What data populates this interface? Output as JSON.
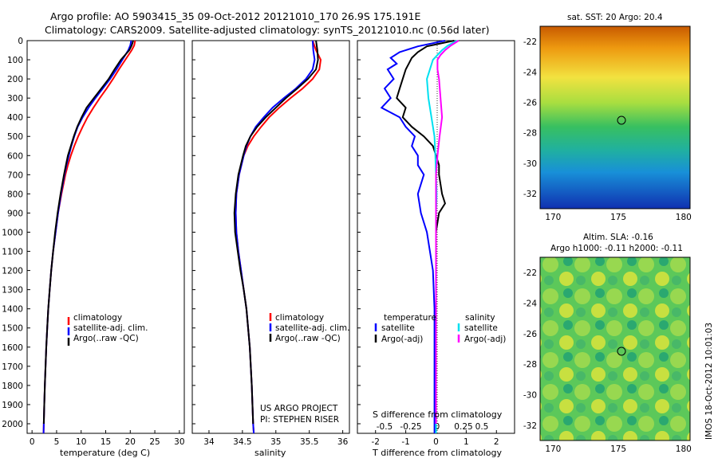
{
  "header": {
    "line1": "Argo profile: AO 5903415_35 09-Oct-2012 20121010_170 26.9S 175.191E",
    "line2": "Climatology: CARS2009. Satellite-adjusted climatology: synTS_20121010.nc (0.56d later)"
  },
  "project": {
    "line1": "US ARGO PROJECT",
    "line2": "PI: STEPHEN RISER"
  },
  "timestamp": "IMOS 18-Oct-2012 10:01:03",
  "colors": {
    "climatology": "#ff0000",
    "satellite": "#0000ff",
    "argo": "#000000",
    "cyan": "#00e0f0",
    "magenta": "#ff00ff"
  },
  "chart_data": [
    {
      "type": "line",
      "xlabel": "temperature (deg C)",
      "ylabel": "",
      "xlim": [
        -1,
        31
      ],
      "ylim": [
        2050,
        0
      ],
      "xticks": [
        0,
        5,
        10,
        15,
        20,
        25,
        30
      ],
      "yticks": [
        0,
        100,
        200,
        300,
        400,
        500,
        600,
        700,
        800,
        900,
        1000,
        1100,
        1200,
        1300,
        1400,
        1500,
        1600,
        1700,
        1800,
        1900,
        2000
      ],
      "legend": [
        "climatology",
        "satellite-adj. clim.",
        "Argo(..raw -QC)"
      ],
      "series": [
        {
          "name": "climatology",
          "depth": [
            0,
            25,
            50,
            100,
            150,
            200,
            250,
            300,
            350,
            400,
            450,
            500,
            550,
            600,
            650,
            700,
            800,
            900,
            1000,
            1100,
            1200,
            1300,
            1400,
            1500,
            1600,
            1700,
            1800,
            1900,
            2000,
            2050
          ],
          "values": [
            21,
            20.8,
            20.3,
            19,
            17.7,
            16.5,
            15.2,
            13.8,
            12.5,
            11.3,
            10.3,
            9.4,
            8.6,
            7.9,
            7.3,
            6.8,
            6.0,
            5.3,
            4.8,
            4.3,
            3.9,
            3.6,
            3.3,
            3.1,
            2.9,
            2.75,
            2.6,
            2.5,
            2.4,
            2.35
          ]
        },
        {
          "name": "satellite-adj. clim.",
          "depth": [
            0,
            25,
            50,
            100,
            150,
            200,
            250,
            300,
            350,
            400,
            450,
            500,
            550,
            600,
            650,
            700,
            800,
            900,
            1000,
            1100,
            1200,
            1300,
            1400,
            1500,
            1600,
            1700,
            1800,
            1900,
            2000,
            2050
          ],
          "values": [
            20.2,
            20,
            19.6,
            18.4,
            17.2,
            15.9,
            14.4,
            12.9,
            11.5,
            10.3,
            9.3,
            8.6,
            8.0,
            7.5,
            7.0,
            6.6,
            5.9,
            5.3,
            4.8,
            4.3,
            3.9,
            3.6,
            3.3,
            3.1,
            2.9,
            2.75,
            2.6,
            2.5,
            2.4,
            2.35
          ]
        },
        {
          "name": "Argo(..raw -QC)",
          "depth": [
            0,
            25,
            50,
            100,
            150,
            200,
            250,
            300,
            350,
            400,
            450,
            500,
            550,
            600,
            650,
            700,
            800,
            900,
            1000,
            1100,
            1200,
            1300,
            1400,
            1500,
            1600,
            1700,
            1800,
            1900,
            2000
          ],
          "values": [
            20.6,
            20.3,
            19.8,
            18.1,
            16.8,
            15.6,
            14.1,
            12.6,
            11.1,
            10.1,
            9.2,
            8.5,
            7.9,
            7.3,
            6.9,
            6.5,
            5.8,
            5.2,
            4.7,
            4.3,
            3.9,
            3.6,
            3.3,
            3.1,
            2.9,
            2.75,
            2.6,
            2.5,
            2.4
          ]
        }
      ]
    },
    {
      "type": "line",
      "xlabel": "salinity",
      "ylabel": "",
      "xlim": [
        33.75,
        36.1
      ],
      "ylim": [
        2050,
        0
      ],
      "xticks": [
        34,
        34.5,
        35,
        35.5,
        36
      ],
      "legend": [
        "climatology",
        "satellite-adj. clim.",
        "Argo(..raw -QC)"
      ],
      "series": [
        {
          "name": "climatology",
          "depth": [
            0,
            50,
            100,
            150,
            200,
            250,
            300,
            350,
            400,
            450,
            500,
            550,
            600,
            700,
            800,
            900,
            1000,
            1100,
            1200,
            1300,
            1400,
            1600,
            1800,
            2000,
            2050
          ],
          "values": [
            35.55,
            35.6,
            35.67,
            35.65,
            35.55,
            35.4,
            35.22,
            35.05,
            34.9,
            34.78,
            34.67,
            34.58,
            34.52,
            34.45,
            34.41,
            34.4,
            34.41,
            34.44,
            34.48,
            34.52,
            34.56,
            34.61,
            34.64,
            34.66,
            34.67
          ]
        },
        {
          "name": "satellite-adj. clim.",
          "depth": [
            0,
            50,
            100,
            150,
            200,
            250,
            300,
            350,
            400,
            450,
            500,
            550,
            600,
            700,
            800,
            900,
            1000,
            1100,
            1200,
            1300,
            1400,
            1600,
            1800,
            2000,
            2050
          ],
          "values": [
            35.55,
            35.56,
            35.58,
            35.55,
            35.45,
            35.3,
            35.12,
            34.95,
            34.82,
            34.7,
            34.62,
            34.56,
            34.52,
            34.45,
            34.41,
            34.4,
            34.41,
            34.44,
            34.48,
            34.52,
            34.56,
            34.61,
            34.64,
            34.66,
            34.67
          ]
        },
        {
          "name": "Argo(..raw -QC)",
          "depth": [
            0,
            50,
            100,
            150,
            200,
            250,
            300,
            350,
            400,
            450,
            500,
            550,
            600,
            700,
            800,
            900,
            1000,
            1100,
            1200,
            1300,
            1400,
            1600,
            1800,
            2000
          ],
          "values": [
            35.6,
            35.62,
            35.63,
            35.6,
            35.48,
            35.32,
            35.15,
            35.0,
            34.85,
            34.72,
            34.62,
            34.55,
            34.51,
            34.44,
            34.4,
            34.38,
            34.39,
            34.43,
            34.47,
            34.52,
            34.56,
            34.61,
            34.64,
            34.66
          ]
        }
      ]
    },
    {
      "type": "line",
      "xlabel": "T difference from climatology",
      "xlabel2": "S difference from climatology",
      "ylabel": "",
      "xlim": [
        -2.6,
        2.6
      ],
      "ylim": [
        2050,
        0
      ],
      "xticks": [
        -2,
        -1,
        0,
        1,
        2
      ],
      "xticks_s": [
        "-0.5",
        "-0.25",
        "0",
        "0.25",
        "0.5"
      ],
      "legend_left_title": "temperature",
      "legend_right_title": "salinity",
      "legend": [
        "satellite",
        "Argo(-adj)",
        "satellite",
        "Argo(-adj)"
      ],
      "series": [
        {
          "name": "T satellite",
          "depth": [
            0,
            30,
            60,
            90,
            120,
            150,
            200,
            250,
            300,
            350,
            400,
            450,
            500,
            550,
            600,
            650,
            700,
            800,
            900,
            1000,
            1100,
            1200,
            1400,
            1600,
            1800,
            2000,
            2050
          ],
          "values": [
            0.3,
            -0.6,
            -1.2,
            -1.5,
            -1.3,
            -1.6,
            -1.4,
            -1.7,
            -1.5,
            -1.8,
            -1.2,
            -1.0,
            -0.7,
            -0.8,
            -0.6,
            -0.6,
            -0.4,
            -0.6,
            -0.5,
            -0.3,
            -0.2,
            -0.1,
            -0.05,
            -0.05,
            -0.05,
            -0.05,
            -0.05
          ]
        },
        {
          "name": "T Argo(-adj)",
          "depth": [
            0,
            30,
            60,
            90,
            120,
            150,
            200,
            250,
            300,
            350,
            400,
            450,
            500,
            550,
            600,
            650,
            700,
            800,
            850,
            900,
            1000,
            1100,
            1200,
            1400,
            1600,
            1800,
            2000
          ],
          "values": [
            0.6,
            -0.3,
            -0.6,
            -0.8,
            -0.9,
            -1.0,
            -1.1,
            -1.2,
            -1.3,
            -1.0,
            -1.1,
            -0.8,
            -0.4,
            -0.1,
            0.0,
            0.1,
            0.1,
            0.2,
            0.3,
            0.1,
            0.0,
            0.0,
            0.0,
            0.0,
            0.0,
            0.0,
            0.0
          ]
        },
        {
          "name": "S satellite",
          "depth": [
            0,
            25,
            50,
            75,
            100,
            150,
            200,
            300,
            400,
            500,
            600,
            700,
            800,
            900,
            1000,
            1200,
            1400,
            1600,
            1800,
            2000,
            2050
          ],
          "values": [
            0.7,
            0.4,
            0.2,
            0.05,
            -0.1,
            -0.2,
            -0.3,
            -0.25,
            -0.15,
            -0.05,
            -0.02,
            0.0,
            0.02,
            0.0,
            0.0,
            0.0,
            0.0,
            0.0,
            0.0,
            0.0,
            0.0
          ]
        },
        {
          "name": "S Argo(-adj)",
          "depth": [
            0,
            25,
            50,
            75,
            100,
            150,
            200,
            300,
            400,
            500,
            600,
            700,
            800,
            900,
            1000,
            1200,
            1400,
            1600,
            1800,
            2000
          ],
          "values": [
            0.75,
            0.5,
            0.3,
            0.15,
            0.05,
            0.05,
            0.1,
            0.15,
            0.2,
            0.12,
            0.05,
            0.0,
            0.0,
            0.0,
            0.0,
            0.0,
            0.0,
            0.0,
            0.0,
            0.0
          ]
        }
      ]
    },
    {
      "type": "heatmap",
      "title": "sat. SST: 20 Argo: 20.4",
      "xticks": [
        170,
        175,
        180
      ],
      "yticks": [
        -22,
        -24,
        -26,
        -28,
        -30,
        -32
      ],
      "xlim": [
        169,
        180.5
      ],
      "ylim": [
        -33,
        -21
      ],
      "marker": {
        "lon": 175.2,
        "lat": -26.9
      }
    },
    {
      "type": "heatmap",
      "title_line1": "Altim. SLA: -0.16",
      "title_line2": "Argo h1000: -0.11 h2000: -0.11",
      "xticks": [
        170,
        175,
        180
      ],
      "yticks": [
        -22,
        -24,
        -26,
        -28,
        -30,
        -32
      ],
      "xlim": [
        169,
        180.5
      ],
      "ylim": [
        -33,
        -21
      ],
      "marker": {
        "lon": 175.2,
        "lat": -26.9
      }
    }
  ]
}
